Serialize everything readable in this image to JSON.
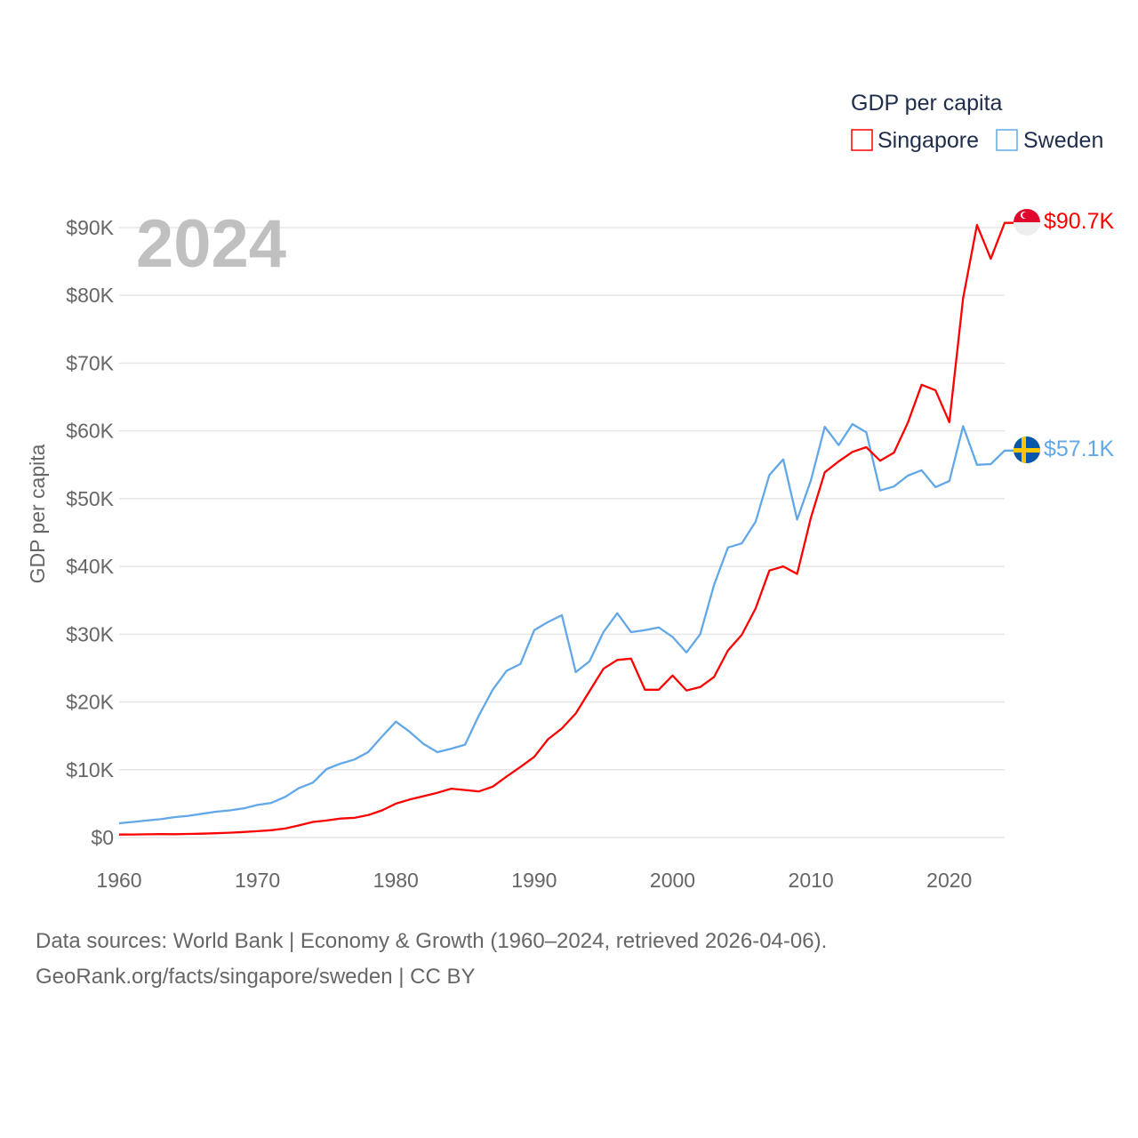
{
  "chart_data": {
    "type": "line",
    "title": "GDP per capita",
    "year_label": "2024",
    "ylabel": "GDP per capita",
    "xlabel": "",
    "ylim": [
      0,
      90000
    ],
    "xlim": [
      1960,
      2024
    ],
    "grid": true,
    "legend_placement": "top-right",
    "x_ticks": [
      1960,
      1970,
      1980,
      1990,
      2000,
      2010,
      2020
    ],
    "x_tick_labels": [
      "1960",
      "1970",
      "1980",
      "1990",
      "2000",
      "2010",
      "2020"
    ],
    "y_ticks": [
      0,
      10000,
      20000,
      30000,
      40000,
      50000,
      60000,
      70000,
      80000,
      90000
    ],
    "y_tick_labels": [
      "$0",
      "$10K",
      "$20K",
      "$30K",
      "$40K",
      "$50K",
      "$60K",
      "$70K",
      "$80K",
      "$90K"
    ],
    "x": [
      1960,
      1961,
      1962,
      1963,
      1964,
      1965,
      1966,
      1967,
      1968,
      1969,
      1970,
      1971,
      1972,
      1973,
      1974,
      1975,
      1976,
      1977,
      1978,
      1979,
      1980,
      1981,
      1982,
      1983,
      1984,
      1985,
      1986,
      1987,
      1988,
      1989,
      1990,
      1991,
      1992,
      1993,
      1994,
      1995,
      1996,
      1997,
      1998,
      1999,
      2000,
      2001,
      2002,
      2003,
      2004,
      2005,
      2006,
      2007,
      2008,
      2009,
      2010,
      2011,
      2012,
      2013,
      2014,
      2015,
      2016,
      2017,
      2018,
      2019,
      2020,
      2021,
      2022,
      2023,
      2024
    ],
    "series": [
      {
        "name": "Singapore",
        "color": "#ff0000",
        "end_label": "$90.7K",
        "values": [
          430,
          450,
          470,
          500,
          480,
          520,
          570,
          630,
          710,
          810,
          930,
          1070,
          1330,
          1790,
          2300,
          2500,
          2800,
          2900,
          3300,
          4000,
          5000,
          5600,
          6100,
          6600,
          7200,
          7000,
          6800,
          7500,
          9000,
          10400,
          11900,
          14500,
          16100,
          18300,
          21600,
          24900,
          26200,
          26400,
          21800,
          21800,
          23900,
          21700,
          22200,
          23700,
          27600,
          29900,
          33800,
          39400,
          40000,
          38900,
          47200,
          53900,
          55500,
          56900,
          57600,
          55600,
          56800,
          61200,
          66800,
          66000,
          61300,
          79600,
          90400,
          85400,
          90700
        ]
      },
      {
        "name": "Sweden",
        "color": "#62a8e8",
        "end_label": "$57.1K",
        "values": [
          2100,
          2300,
          2500,
          2700,
          3000,
          3200,
          3500,
          3800,
          4000,
          4300,
          4800,
          5100,
          6000,
          7300,
          8100,
          10100,
          10900,
          11500,
          12600,
          14900,
          17100,
          15600,
          13800,
          12600,
          13100,
          13700,
          18000,
          21800,
          24600,
          25600,
          30600,
          31800,
          32800,
          24400,
          26000,
          30300,
          33100,
          30300,
          30600,
          31000,
          29600,
          27300,
          30000,
          37300,
          42800,
          43400,
          46600,
          53500,
          55800,
          46900,
          52700,
          60600,
          57900,
          61000,
          59800,
          51200,
          51800,
          53400,
          54200,
          51700,
          52600,
          60700,
          55000,
          55100,
          57100
        ]
      }
    ]
  },
  "footer": {
    "line1": "Data sources: World Bank | Economy & Growth (1960–2024, retrieved 2026-04-06).",
    "line2": "GeoRank.org/facts/singapore/sweden | CC BY"
  }
}
